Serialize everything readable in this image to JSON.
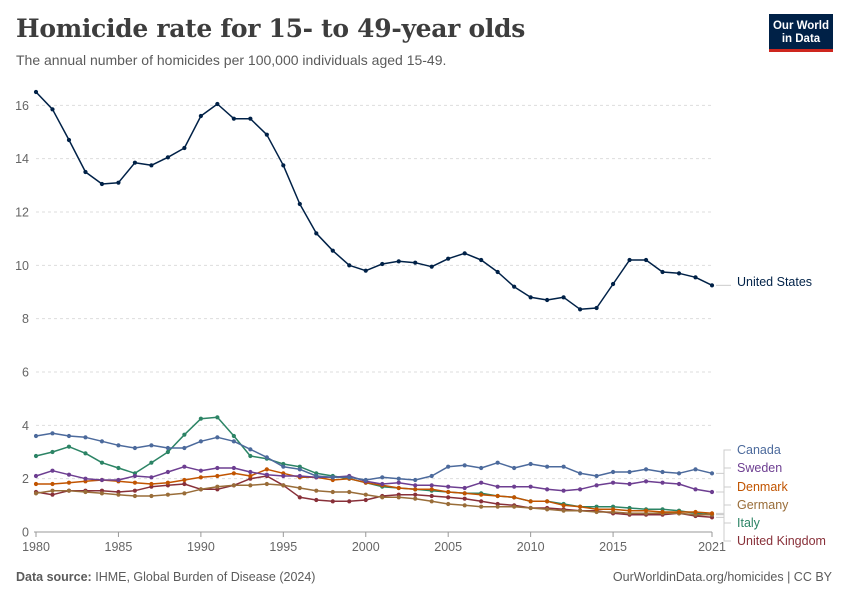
{
  "header": {
    "title": "Homicide rate for 15- to 49-year olds",
    "subtitle": "The annual number of homicides per 100,000 individuals aged 15-49.",
    "logo_line1": "Our World",
    "logo_line2": "in Data"
  },
  "footer": {
    "source_label": "Data source:",
    "source_text": "IHME, Global Burden of Disease (2024)",
    "url": "OurWorldinData.org/homicides | CC BY"
  },
  "chart_data": {
    "type": "line",
    "title": "Homicide rate for 15- to 49-year olds",
    "xlabel": "",
    "ylabel": "",
    "xlim": [
      1980,
      2021
    ],
    "ylim": [
      0,
      16.5
    ],
    "x_ticks": [
      "1980",
      "1985",
      "1990",
      "1995",
      "2000",
      "2005",
      "2010",
      "2015",
      "2021"
    ],
    "x_tick_values": [
      1980,
      1985,
      1990,
      1995,
      2000,
      2005,
      2010,
      2015,
      2021
    ],
    "y_ticks": [
      "0",
      "2",
      "4",
      "6",
      "8",
      "10",
      "12",
      "14",
      "16"
    ],
    "y_tick_values": [
      0,
      2,
      4,
      6,
      8,
      10,
      12,
      14,
      16
    ],
    "x": [
      1980,
      1981,
      1982,
      1983,
      1984,
      1985,
      1986,
      1987,
      1988,
      1989,
      1990,
      1991,
      1992,
      1993,
      1994,
      1995,
      1996,
      1997,
      1998,
      1999,
      2000,
      2001,
      2002,
      2003,
      2004,
      2005,
      2006,
      2007,
      2008,
      2009,
      2010,
      2011,
      2012,
      2013,
      2014,
      2015,
      2016,
      2017,
      2018,
      2019,
      2020,
      2021
    ],
    "series": [
      {
        "name": "United States",
        "color": "#002147",
        "values": [
          16.5,
          15.85,
          14.7,
          13.5,
          13.05,
          13.1,
          13.85,
          13.75,
          14.05,
          14.4,
          15.6,
          16.05,
          15.5,
          15.5,
          14.9,
          13.75,
          12.3,
          11.2,
          10.55,
          10.0,
          9.8,
          10.05,
          10.15,
          10.1,
          9.95,
          10.25,
          10.45,
          10.2,
          9.75,
          9.2,
          8.8,
          8.7,
          8.8,
          8.35,
          8.4,
          9.3,
          10.2,
          10.2,
          9.75,
          9.7,
          9.55,
          9.25
        ]
      },
      {
        "name": "Canada",
        "color": "#4c6a9c",
        "values": [
          3.6,
          3.7,
          3.6,
          3.55,
          3.4,
          3.25,
          3.15,
          3.25,
          3.15,
          3.15,
          3.4,
          3.55,
          3.4,
          3.1,
          2.8,
          2.45,
          2.35,
          2.1,
          2.05,
          2.05,
          1.95,
          2.05,
          2.0,
          1.95,
          2.1,
          2.45,
          2.5,
          2.4,
          2.6,
          2.4,
          2.55,
          2.45,
          2.45,
          2.2,
          2.1,
          2.25,
          2.25,
          2.35,
          2.25,
          2.2,
          2.35,
          2.2
        ]
      },
      {
        "name": "Sweden",
        "color": "#6d3e91",
        "values": [
          2.1,
          2.3,
          2.15,
          2.0,
          1.95,
          1.95,
          2.1,
          2.05,
          2.25,
          2.45,
          2.3,
          2.4,
          2.4,
          2.25,
          2.15,
          2.1,
          2.1,
          2.05,
          2.05,
          2.1,
          1.9,
          1.8,
          1.85,
          1.75,
          1.75,
          1.7,
          1.65,
          1.85,
          1.7,
          1.7,
          1.7,
          1.6,
          1.55,
          1.6,
          1.75,
          1.85,
          1.8,
          1.9,
          1.85,
          1.8,
          1.6,
          1.5
        ]
      },
      {
        "name": "Denmark",
        "color": "#c15400",
        "values": [
          1.8,
          1.8,
          1.85,
          1.9,
          1.95,
          1.9,
          1.85,
          1.8,
          1.85,
          1.95,
          2.05,
          2.1,
          2.2,
          2.1,
          2.35,
          2.2,
          2.05,
          2.05,
          1.95,
          2.0,
          1.85,
          1.75,
          1.65,
          1.6,
          1.6,
          1.5,
          1.45,
          1.4,
          1.35,
          1.3,
          1.15,
          1.15,
          1.0,
          0.95,
          0.85,
          0.85,
          0.8,
          0.8,
          0.75,
          0.75,
          0.75,
          0.7
        ]
      },
      {
        "name": "Germany",
        "color": "#996d39",
        "values": [
          1.45,
          1.55,
          1.55,
          1.5,
          1.45,
          1.4,
          1.35,
          1.35,
          1.4,
          1.45,
          1.6,
          1.7,
          1.75,
          1.75,
          1.8,
          1.75,
          1.65,
          1.55,
          1.5,
          1.5,
          1.4,
          1.3,
          1.3,
          1.25,
          1.15,
          1.05,
          1.0,
          0.95,
          0.95,
          0.95,
          0.9,
          0.85,
          0.8,
          0.8,
          0.75,
          0.75,
          0.7,
          0.7,
          0.7,
          0.7,
          0.65,
          0.65
        ]
      },
      {
        "name": "Italy",
        "color": "#2c8465",
        "values": [
          2.85,
          3.0,
          3.2,
          2.95,
          2.6,
          2.4,
          2.2,
          2.6,
          3.0,
          3.65,
          4.25,
          4.3,
          3.6,
          2.85,
          2.75,
          2.55,
          2.45,
          2.2,
          2.1,
          2.0,
          1.85,
          1.7,
          1.65,
          1.6,
          1.55,
          1.5,
          1.45,
          1.45,
          1.35,
          1.3,
          1.15,
          1.15,
          1.05,
          0.95,
          0.95,
          0.95,
          0.9,
          0.85,
          0.85,
          0.8,
          0.7,
          0.65
        ]
      },
      {
        "name": "United Kingdom",
        "color": "#883039",
        "values": [
          1.5,
          1.4,
          1.55,
          1.55,
          1.55,
          1.5,
          1.55,
          1.7,
          1.75,
          1.8,
          1.6,
          1.6,
          1.75,
          2.0,
          2.1,
          1.75,
          1.3,
          1.2,
          1.15,
          1.15,
          1.2,
          1.35,
          1.4,
          1.4,
          1.35,
          1.3,
          1.25,
          1.15,
          1.05,
          1.0,
          0.9,
          0.9,
          0.85,
          0.8,
          0.8,
          0.7,
          0.65,
          0.65,
          0.65,
          0.7,
          0.6,
          0.55
        ]
      }
    ],
    "legend": [
      "United States",
      "Canada",
      "Sweden",
      "Denmark",
      "Germany",
      "Italy",
      "United Kingdom"
    ]
  }
}
